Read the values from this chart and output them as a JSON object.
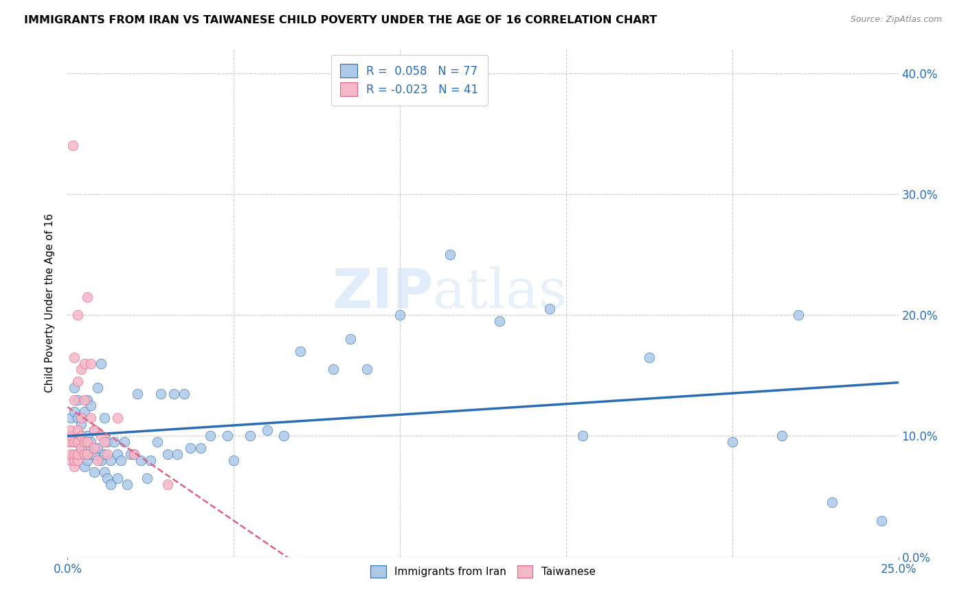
{
  "title": "IMMIGRANTS FROM IRAN VS TAIWANESE CHILD POVERTY UNDER THE AGE OF 16 CORRELATION CHART",
  "source": "Source: ZipAtlas.com",
  "ylabel": "Child Poverty Under the Age of 16",
  "xmin": 0.0,
  "xmax": 0.25,
  "ymin": 0.0,
  "ymax": 0.42,
  "blue_R": 0.058,
  "blue_N": 77,
  "pink_R": -0.023,
  "pink_N": 41,
  "blue_color": "#aec9e8",
  "pink_color": "#f5b8c8",
  "blue_line_color": "#2a6db5",
  "pink_line_color": "#e06080",
  "watermark_zip": "ZIP",
  "watermark_atlas": "atlas",
  "blue_x": [
    0.001,
    0.001,
    0.002,
    0.002,
    0.002,
    0.003,
    0.003,
    0.003,
    0.003,
    0.004,
    0.004,
    0.004,
    0.005,
    0.005,
    0.005,
    0.006,
    0.006,
    0.006,
    0.006,
    0.007,
    0.007,
    0.007,
    0.008,
    0.008,
    0.008,
    0.009,
    0.009,
    0.01,
    0.01,
    0.011,
    0.011,
    0.011,
    0.012,
    0.012,
    0.013,
    0.013,
    0.014,
    0.015,
    0.015,
    0.016,
    0.017,
    0.018,
    0.019,
    0.02,
    0.021,
    0.022,
    0.024,
    0.025,
    0.027,
    0.028,
    0.03,
    0.032,
    0.033,
    0.035,
    0.037,
    0.04,
    0.043,
    0.048,
    0.05,
    0.055,
    0.06,
    0.065,
    0.07,
    0.08,
    0.085,
    0.09,
    0.1,
    0.115,
    0.13,
    0.145,
    0.155,
    0.175,
    0.2,
    0.215,
    0.22,
    0.23,
    0.245
  ],
  "blue_y": [
    0.1,
    0.115,
    0.095,
    0.12,
    0.14,
    0.085,
    0.095,
    0.115,
    0.13,
    0.09,
    0.1,
    0.11,
    0.075,
    0.095,
    0.12,
    0.08,
    0.09,
    0.1,
    0.13,
    0.085,
    0.095,
    0.125,
    0.07,
    0.085,
    0.105,
    0.09,
    0.14,
    0.08,
    0.16,
    0.07,
    0.085,
    0.115,
    0.065,
    0.095,
    0.06,
    0.08,
    0.095,
    0.065,
    0.085,
    0.08,
    0.095,
    0.06,
    0.085,
    0.085,
    0.135,
    0.08,
    0.065,
    0.08,
    0.095,
    0.135,
    0.085,
    0.135,
    0.085,
    0.135,
    0.09,
    0.09,
    0.1,
    0.1,
    0.08,
    0.1,
    0.105,
    0.1,
    0.17,
    0.155,
    0.18,
    0.155,
    0.2,
    0.25,
    0.195,
    0.205,
    0.1,
    0.165,
    0.095,
    0.1,
    0.2,
    0.045,
    0.03
  ],
  "pink_x": [
    0.0005,
    0.001,
    0.001,
    0.001,
    0.001,
    0.001,
    0.0015,
    0.002,
    0.002,
    0.002,
    0.002,
    0.002,
    0.002,
    0.003,
    0.003,
    0.003,
    0.003,
    0.003,
    0.003,
    0.004,
    0.004,
    0.004,
    0.004,
    0.005,
    0.005,
    0.005,
    0.005,
    0.006,
    0.006,
    0.006,
    0.007,
    0.007,
    0.008,
    0.008,
    0.009,
    0.01,
    0.011,
    0.012,
    0.015,
    0.02,
    0.03
  ],
  "pink_y": [
    0.095,
    0.08,
    0.085,
    0.095,
    0.1,
    0.105,
    0.34,
    0.075,
    0.08,
    0.085,
    0.095,
    0.13,
    0.165,
    0.08,
    0.085,
    0.095,
    0.105,
    0.145,
    0.2,
    0.09,
    0.1,
    0.115,
    0.155,
    0.085,
    0.095,
    0.13,
    0.16,
    0.085,
    0.095,
    0.215,
    0.115,
    0.16,
    0.09,
    0.105,
    0.08,
    0.1,
    0.095,
    0.085,
    0.115,
    0.085,
    0.06
  ]
}
